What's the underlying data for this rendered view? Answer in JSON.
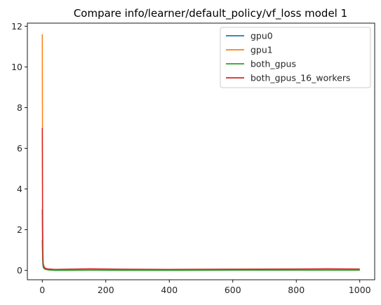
{
  "chart_data": {
    "type": "line",
    "title": "Compare info/learner/default_policy/vf_loss model 1",
    "xlabel": "",
    "ylabel": "",
    "xlim": [
      -47,
      1047
    ],
    "ylim": [
      -0.46,
      12.15
    ],
    "xticks": [
      0,
      200,
      400,
      600,
      800,
      1000
    ],
    "yticks": [
      0,
      2,
      4,
      6,
      8,
      10,
      12
    ],
    "grid": false,
    "legend_placement": "top-right",
    "series": [
      {
        "name": "gpu0",
        "color": "#1f77b4",
        "x": [
          0,
          1,
          2,
          3,
          5,
          8,
          12,
          20,
          40,
          80,
          150,
          250,
          400,
          600,
          800,
          1000
        ],
        "y": [
          3.0,
          1.0,
          0.4,
          0.25,
          0.15,
          0.1,
          0.07,
          0.05,
          0.03,
          0.03,
          0.04,
          0.03,
          0.02,
          0.03,
          0.03,
          0.03
        ]
      },
      {
        "name": "gpu1",
        "color": "#ff7f0e",
        "x": [
          0,
          1,
          2,
          3,
          5,
          8,
          12,
          20,
          40,
          80,
          150,
          250,
          400,
          600,
          800,
          1000
        ],
        "y": [
          11.6,
          3.5,
          0.8,
          0.35,
          0.2,
          0.12,
          0.08,
          0.05,
          0.04,
          0.04,
          0.05,
          0.04,
          0.03,
          0.04,
          0.04,
          0.04
        ]
      },
      {
        "name": "both_gpus",
        "color": "#2ca02c",
        "x": [
          0,
          1,
          2,
          3,
          5,
          8,
          12,
          20,
          40,
          80,
          150,
          250,
          400,
          600,
          800,
          1000
        ],
        "y": [
          1.5,
          0.6,
          0.25,
          0.15,
          0.1,
          0.06,
          0.04,
          0.02,
          0.0,
          0.0,
          0.01,
          0.0,
          0.0,
          0.01,
          0.01,
          0.01
        ]
      },
      {
        "name": "both_gpus_16_workers",
        "color": "#d62728",
        "x": [
          0,
          1,
          2,
          3,
          5,
          8,
          12,
          20,
          40,
          80,
          150,
          200,
          250,
          400,
          600,
          800,
          900,
          1000
        ],
        "y": [
          7.0,
          2.0,
          0.5,
          0.3,
          0.2,
          0.12,
          0.09,
          0.07,
          0.05,
          0.06,
          0.08,
          0.07,
          0.06,
          0.05,
          0.06,
          0.07,
          0.08,
          0.07
        ]
      }
    ]
  }
}
